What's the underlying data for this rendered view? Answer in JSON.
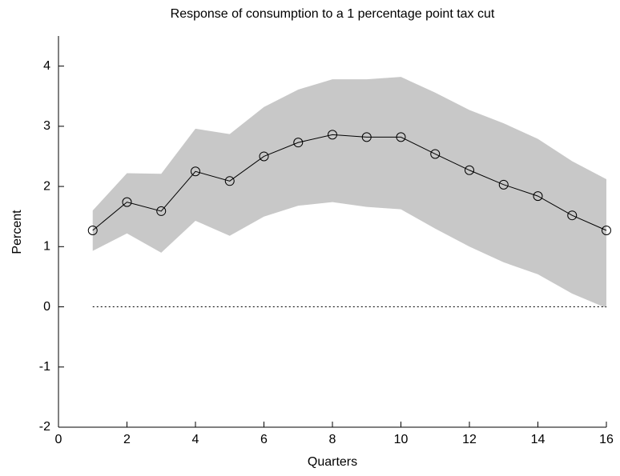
{
  "chart_data": {
    "type": "line",
    "title": "Response of consumption to a 1 percentage point tax cut",
    "x_label": "Quarters",
    "y_label": "Percent",
    "x": [
      1,
      2,
      3,
      4,
      5,
      6,
      7,
      8,
      9,
      10,
      11,
      12,
      13,
      14,
      15,
      16
    ],
    "values": [
      1.27,
      1.74,
      1.59,
      2.25,
      2.09,
      2.5,
      2.73,
      2.86,
      2.82,
      2.82,
      2.54,
      2.27,
      2.03,
      1.84,
      1.52,
      1.27
    ],
    "upper": [
      1.6,
      2.22,
      2.21,
      2.96,
      2.87,
      3.32,
      3.61,
      3.78,
      3.78,
      3.82,
      3.56,
      3.27,
      3.05,
      2.79,
      2.42,
      2.12
    ],
    "lower": [
      0.93,
      1.22,
      0.9,
      1.43,
      1.18,
      1.5,
      1.68,
      1.74,
      1.66,
      1.62,
      1.3,
      1.0,
      0.74,
      0.54,
      0.22,
      -0.02
    ],
    "color": "#000000",
    "band_color": "#c8c8c8",
    "zero_line": 0,
    "xlim": [
      0,
      16
    ],
    "xticks": [
      0,
      2,
      4,
      6,
      8,
      10,
      12,
      14,
      16
    ],
    "ylim": [
      -2,
      4.5
    ],
    "yticks": [
      -2,
      -1,
      0,
      1,
      2,
      3,
      4
    ]
  }
}
